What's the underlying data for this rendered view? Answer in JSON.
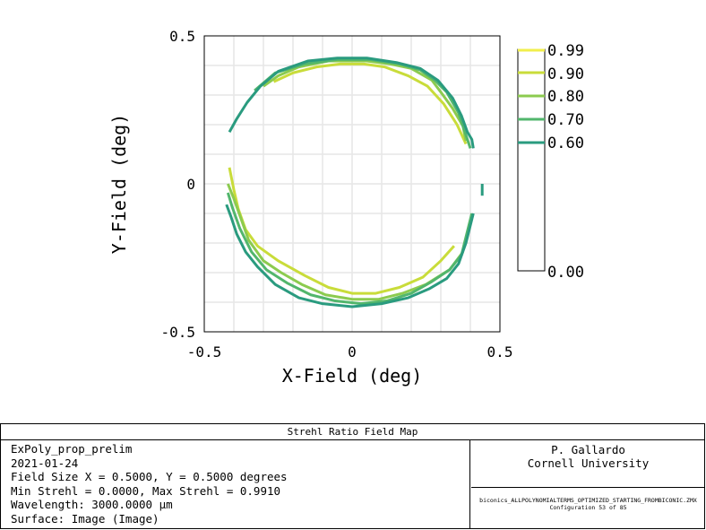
{
  "chart_data": {
    "type": "contour",
    "xlabel": "X-Field (deg)",
    "ylabel": "Y-Field (deg)",
    "xlim": [
      -0.5,
      0.5
    ],
    "ylim": [
      -0.5,
      0.5
    ],
    "xticks": [
      "-0.5",
      "0",
      "0.5"
    ],
    "yticks": [
      "0.5",
      "0",
      "-0.5"
    ],
    "grid": true,
    "legend_position": "right",
    "legend": {
      "entries": [
        "0.99",
        "0.90",
        "0.80",
        "0.70",
        "0.60"
      ],
      "bottom_label": "0.00",
      "colors": [
        "#f1ef4c",
        "#c9dc3a",
        "#8ccb4f",
        "#52b66c",
        "#2a9b7f"
      ]
    },
    "series": [
      {
        "name": "0.90",
        "color": "#c9dc3a",
        "segments": [
          [
            [
              -0.265,
              0.345
            ],
            [
              -0.2,
              0.375
            ],
            [
              -0.12,
              0.395
            ],
            [
              -0.04,
              0.405
            ],
            [
              0.04,
              0.405
            ],
            [
              0.11,
              0.395
            ],
            [
              0.19,
              0.365
            ],
            [
              0.255,
              0.33
            ],
            [
              0.31,
              0.27
            ],
            [
              0.355,
              0.2
            ],
            [
              0.385,
              0.135
            ]
          ],
          [
            [
              -0.415,
              0.055
            ],
            [
              -0.4,
              -0.02
            ],
            [
              -0.385,
              -0.085
            ],
            [
              -0.36,
              -0.155
            ],
            [
              -0.32,
              -0.21
            ],
            [
              -0.25,
              -0.26
            ],
            [
              -0.16,
              -0.31
            ],
            [
              -0.08,
              -0.35
            ],
            [
              0.0,
              -0.37
            ],
            [
              0.08,
              -0.37
            ],
            [
              0.16,
              -0.35
            ],
            [
              0.24,
              -0.315
            ],
            [
              0.3,
              -0.26
            ],
            [
              0.345,
              -0.21
            ]
          ]
        ]
      },
      {
        "name": "0.80",
        "color": "#8ccb4f",
        "segments": [
          [
            [
              -0.3,
              0.33
            ],
            [
              -0.25,
              0.365
            ],
            [
              -0.18,
              0.395
            ],
            [
              -0.08,
              0.415
            ],
            [
              0.05,
              0.415
            ],
            [
              0.13,
              0.405
            ],
            [
              0.2,
              0.39
            ],
            [
              0.27,
              0.35
            ],
            [
              0.3,
              0.31
            ],
            [
              0.34,
              0.255
            ],
            [
              0.375,
              0.195
            ],
            [
              0.385,
              0.145
            ]
          ],
          [
            [
              -0.42,
              0.0
            ],
            [
              -0.4,
              -0.05
            ],
            [
              -0.375,
              -0.12
            ],
            [
              -0.35,
              -0.19
            ],
            [
              -0.3,
              -0.26
            ],
            [
              -0.24,
              -0.3
            ],
            [
              -0.17,
              -0.34
            ],
            [
              -0.09,
              -0.375
            ],
            [
              0.0,
              -0.39
            ],
            [
              0.09,
              -0.39
            ],
            [
              0.17,
              -0.37
            ],
            [
              0.25,
              -0.34
            ],
            [
              0.33,
              -0.29
            ],
            [
              0.375,
              -0.23
            ]
          ]
        ]
      },
      {
        "name": "0.70",
        "color": "#52b66c",
        "segments": [
          [
            [
              -0.33,
              0.315
            ],
            [
              -0.26,
              0.375
            ],
            [
              -0.16,
              0.405
            ],
            [
              -0.05,
              0.42
            ],
            [
              0.06,
              0.42
            ],
            [
              0.16,
              0.405
            ],
            [
              0.23,
              0.385
            ],
            [
              0.28,
              0.35
            ],
            [
              0.32,
              0.31
            ],
            [
              0.36,
              0.24
            ],
            [
              0.385,
              0.165
            ],
            [
              0.4,
              0.12
            ]
          ],
          [
            [
              -0.42,
              -0.03
            ],
            [
              -0.405,
              -0.08
            ],
            [
              -0.38,
              -0.15
            ],
            [
              -0.34,
              -0.23
            ],
            [
              -0.29,
              -0.29
            ],
            [
              -0.22,
              -0.335
            ],
            [
              -0.14,
              -0.375
            ],
            [
              -0.06,
              -0.395
            ],
            [
              0.03,
              -0.405
            ],
            [
              0.12,
              -0.395
            ],
            [
              0.2,
              -0.37
            ],
            [
              0.27,
              -0.33
            ],
            [
              0.33,
              -0.29
            ],
            [
              0.37,
              -0.24
            ],
            [
              0.39,
              -0.16
            ],
            [
              0.405,
              -0.1
            ]
          ]
        ]
      },
      {
        "name": "0.60",
        "color": "#2a9b7f",
        "segments": [
          [
            [
              -0.415,
              0.175
            ],
            [
              -0.39,
              0.22
            ],
            [
              -0.355,
              0.275
            ],
            [
              -0.31,
              0.33
            ],
            [
              -0.25,
              0.38
            ],
            [
              -0.15,
              0.415
            ],
            [
              -0.05,
              0.425
            ],
            [
              0.05,
              0.425
            ],
            [
              0.15,
              0.41
            ],
            [
              0.23,
              0.39
            ],
            [
              0.29,
              0.35
            ],
            [
              0.34,
              0.29
            ],
            [
              0.37,
              0.23
            ],
            [
              0.39,
              0.175
            ],
            [
              0.405,
              0.15
            ],
            [
              0.41,
              0.12
            ]
          ],
          [
            [
              -0.425,
              -0.07
            ],
            [
              -0.41,
              -0.11
            ],
            [
              -0.39,
              -0.17
            ],
            [
              -0.36,
              -0.23
            ],
            [
              -0.32,
              -0.28
            ],
            [
              -0.26,
              -0.34
            ],
            [
              -0.18,
              -0.385
            ],
            [
              -0.1,
              -0.405
            ],
            [
              0.0,
              -0.415
            ],
            [
              0.1,
              -0.405
            ],
            [
              0.19,
              -0.385
            ],
            [
              0.26,
              -0.355
            ],
            [
              0.32,
              -0.32
            ],
            [
              0.36,
              -0.27
            ],
            [
              0.385,
              -0.2
            ],
            [
              0.4,
              -0.14
            ],
            [
              0.41,
              -0.1
            ]
          ],
          [
            [
              0.44,
              0.0
            ],
            [
              0.44,
              -0.04
            ]
          ]
        ]
      }
    ]
  },
  "footer": {
    "title": "Strehl Ratio Field Map",
    "left_lines": [
      "ExPoly_prop_prelim",
      "2021-01-24",
      "Field Size X = 0.5000, Y = 0.5000 degrees",
      "Min Strehl = 0.0000, Max Strehl = 0.9910",
      "Wavelength: 3000.0000 µm",
      "Surface: Image (Image)"
    ],
    "author": "P. Gallardo",
    "institution": "Cornell University",
    "filename": "biconics_ALLPOLYNOMIALTERMS_OPTIMIZED_STARTING_FROMBICONIC.ZMX",
    "configuration": "Configuration 53 of 85"
  }
}
